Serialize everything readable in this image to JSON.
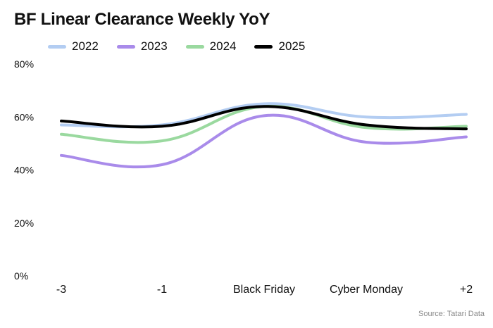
{
  "title": "BF Linear Clearance Weekly YoY",
  "source": "Source: Tatari Data",
  "chart_data": {
    "type": "line",
    "title": "BF Linear Clearance Weekly YoY",
    "xlabel": "",
    "ylabel": "",
    "categories": [
      "-3",
      "-1",
      "Black Friday",
      "Cyber Monday",
      "+2"
    ],
    "y_ticks": [
      "0%",
      "20%",
      "40%",
      "60%",
      "80%"
    ],
    "ylim": [
      0,
      80
    ],
    "grid": false,
    "legend_position": "top-left",
    "series": [
      {
        "name": "2022",
        "color": "#b3cdf2",
        "values": [
          57,
          57,
          65,
          60,
          61
        ]
      },
      {
        "name": "2023",
        "color": "#a98bea",
        "values": [
          45.5,
          42,
          60.5,
          50.5,
          52.5
        ]
      },
      {
        "name": "2024",
        "color": "#9ad99f",
        "values": [
          53.5,
          51,
          64,
          56,
          56.5
        ]
      },
      {
        "name": "2025",
        "color": "#000000",
        "values": [
          58.5,
          56.5,
          64,
          57,
          55.5
        ]
      }
    ]
  }
}
